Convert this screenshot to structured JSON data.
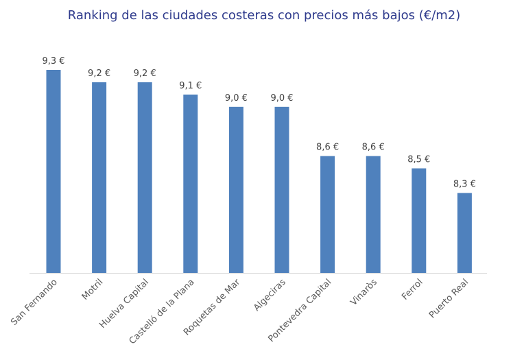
{
  "chart_data": {
    "type": "bar",
    "title": "Ranking de las ciudades costeras con precios más bajos (€/m2)",
    "categories": [
      "San Fernando",
      "Motril",
      "Huelva Capital",
      "Castelló de la Plana",
      "Roquetas de Mar",
      "Algeciras",
      "Pontevedra Capital",
      "Vinaròs",
      "Ferrol",
      "Puerto Real"
    ],
    "values": [
      9.3,
      9.2,
      9.2,
      9.1,
      9.0,
      9.0,
      8.6,
      8.6,
      8.5,
      8.3
    ],
    "data_labels": [
      "9,3 €",
      "9,2 €",
      "9,2 €",
      "9,1 €",
      "9,0 €",
      "9,0 €",
      "8,6 €",
      "8,6 €",
      "8,5 €",
      "8,3 €"
    ],
    "xlabel": "",
    "ylabel": "",
    "ylim": [
      7.65,
      9.3
    ],
    "y_axis_visible": false,
    "grid": false,
    "bar_color": "#4f81bd"
  }
}
